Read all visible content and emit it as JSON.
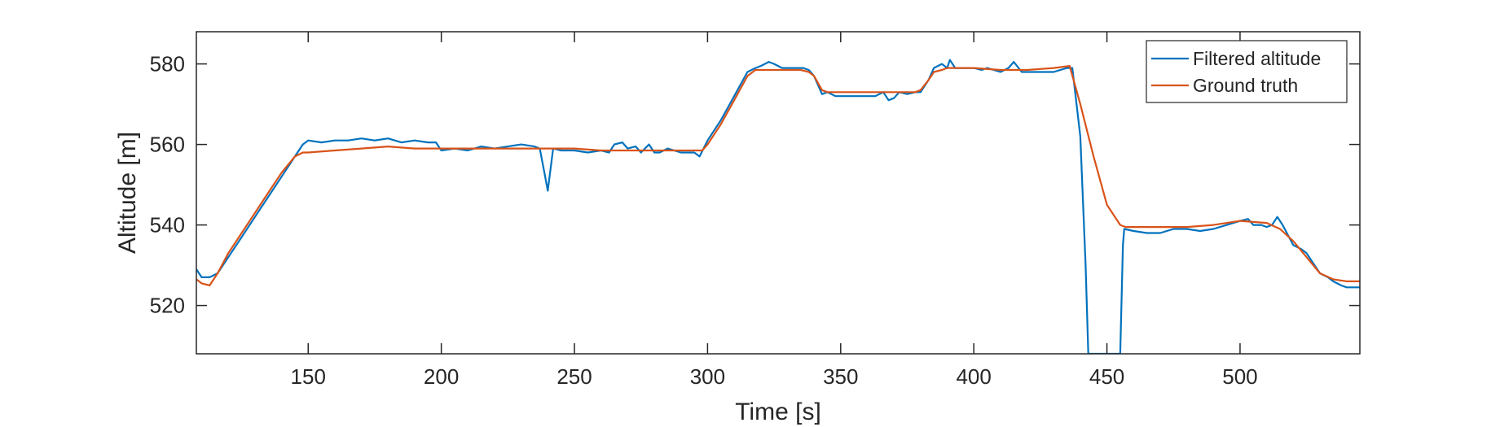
{
  "chart_data": {
    "type": "line",
    "xlabel": "Time [s]",
    "ylabel": "Altitude [m]",
    "xlim": [
      108,
      545
    ],
    "ylim": [
      508,
      588
    ],
    "xticks": [
      150,
      200,
      250,
      300,
      350,
      400,
      450,
      500
    ],
    "yticks": [
      520,
      540,
      560,
      580
    ],
    "grid": false,
    "legend_location": "top-right",
    "series": [
      {
        "name": "Filtered altitude",
        "color": "#0072BD",
        "x": [
          108,
          110,
          113,
          116,
          120,
          125,
          130,
          135,
          140,
          145,
          148,
          150,
          155,
          160,
          165,
          170,
          175,
          180,
          185,
          190,
          195,
          198,
          200,
          205,
          210,
          215,
          220,
          225,
          230,
          235,
          237,
          239,
          240,
          242,
          245,
          250,
          255,
          260,
          263,
          265,
          268,
          270,
          273,
          275,
          278,
          280,
          282,
          285,
          290,
          295,
          297,
          300,
          305,
          310,
          315,
          318,
          320,
          323,
          325,
          328,
          330,
          333,
          336,
          338,
          340,
          343,
          345,
          348,
          350,
          355,
          360,
          363,
          366,
          368,
          370,
          372,
          375,
          378,
          380,
          383,
          385,
          388,
          390,
          391,
          393,
          395,
          400,
          403,
          405,
          410,
          413,
          415,
          418,
          420,
          425,
          430,
          435,
          437,
          440,
          442,
          443,
          455,
          456,
          456.5,
          460,
          465,
          470,
          475,
          480,
          485,
          490,
          495,
          500,
          503,
          505,
          508,
          510,
          512,
          514,
          516,
          520,
          523,
          525,
          528,
          530,
          533,
          535,
          538,
          540,
          543,
          545
        ],
        "y": [
          529,
          527,
          527,
          528,
          532,
          537,
          542,
          547,
          552,
          557,
          560,
          561,
          560.5,
          561,
          561,
          561.5,
          561,
          561.5,
          560.5,
          561,
          560.5,
          560.5,
          558.5,
          559,
          558.5,
          559.5,
          559,
          559.5,
          560,
          559.5,
          559,
          552,
          548.5,
          559,
          558.5,
          558.5,
          558,
          558.5,
          558,
          560,
          560.5,
          559,
          559.5,
          558,
          560,
          558,
          558,
          559,
          558,
          558,
          557,
          561,
          566,
          572,
          578,
          579,
          579.5,
          580.5,
          580,
          579,
          579,
          579,
          579,
          578.5,
          577,
          572.5,
          573,
          572,
          572,
          572,
          572,
          572,
          573,
          571,
          571.5,
          573,
          572.5,
          573,
          573,
          576,
          579,
          580,
          579,
          581,
          579,
          579,
          579,
          578.5,
          579,
          578,
          579,
          580.5,
          578,
          578,
          578,
          578,
          579,
          579,
          562,
          530,
          508,
          508,
          535,
          539,
          538.5,
          538,
          538,
          539,
          539,
          538.5,
          539,
          540,
          541,
          541.5,
          540,
          540,
          539.5,
          540,
          542,
          540,
          535,
          534,
          533,
          530,
          528,
          527,
          526,
          525,
          524.5,
          524.5,
          524.5
        ]
      },
      {
        "name": "Ground truth",
        "color": "#D95319",
        "x": [
          108,
          110,
          113,
          116,
          120,
          125,
          130,
          135,
          140,
          145,
          148,
          150,
          160,
          170,
          180,
          190,
          200,
          210,
          220,
          230,
          240,
          250,
          260,
          270,
          280,
          290,
          298,
          300,
          305,
          310,
          315,
          318,
          320,
          325,
          330,
          335,
          338,
          340,
          343,
          345,
          350,
          360,
          370,
          378,
          380,
          383,
          385,
          388,
          390,
          395,
          400,
          410,
          420,
          430,
          436,
          440,
          445,
          450,
          455,
          457,
          460,
          470,
          480,
          490,
          500,
          510,
          515,
          520,
          525,
          530,
          535,
          540,
          545
        ],
        "y": [
          526.5,
          525.5,
          525,
          528,
          533,
          538,
          543,
          548,
          553,
          557,
          558,
          558,
          558.5,
          559,
          559.5,
          559,
          559,
          559,
          559,
          559,
          559,
          559,
          558.5,
          558.5,
          558.5,
          558.5,
          558.5,
          560,
          565,
          571,
          577,
          578.5,
          578.5,
          578.5,
          578.5,
          578.5,
          578,
          577,
          573.5,
          573,
          573,
          573,
          573,
          573,
          573.5,
          576,
          578,
          578.5,
          579,
          579,
          579,
          578.5,
          578.5,
          579,
          579.5,
          570,
          557,
          545,
          540,
          539.5,
          539.5,
          539.5,
          539.5,
          540,
          541,
          540.5,
          539,
          536,
          532,
          528,
          526.5,
          526,
          526
        ]
      }
    ]
  }
}
